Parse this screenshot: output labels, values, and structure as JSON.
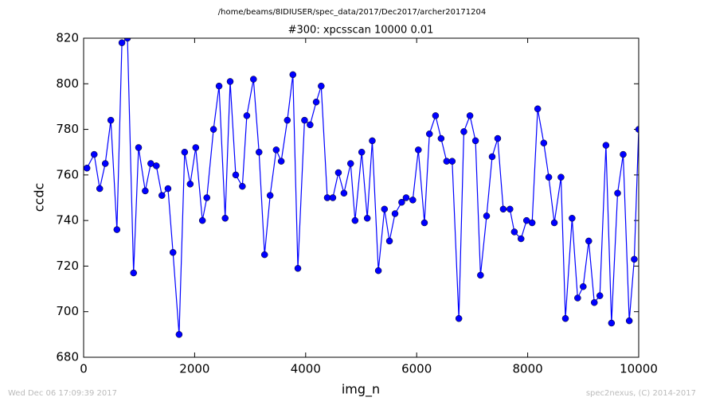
{
  "chart_data": {
    "type": "line",
    "suptitle": "/home/beams/8IDIUSER/spec_data/2017/Dec2017/archer20171204",
    "title": "#300: xpcsscan 10000 0.01",
    "xlabel": "img_n",
    "ylabel": "ccdc",
    "footer_left": "Wed Dec 06 17:09:39 2017",
    "footer_right": "spec2nexus, (C) 2014-2017",
    "xlim": [
      0,
      10000
    ],
    "ylim": [
      680,
      820
    ],
    "xticks": [
      0,
      2000,
      4000,
      6000,
      8000,
      10000
    ],
    "yticks": [
      680,
      700,
      720,
      740,
      760,
      780,
      800,
      820
    ],
    "x": [
      60,
      190,
      290,
      390,
      490,
      600,
      690,
      790,
      900,
      990,
      1110,
      1210,
      1310,
      1410,
      1520,
      1610,
      1720,
      1820,
      1920,
      2020,
      2140,
      2220,
      2340,
      2440,
      2550,
      2640,
      2740,
      2860,
      2940,
      3060,
      3160,
      3260,
      3360,
      3470,
      3560,
      3670,
      3770,
      3860,
      3980,
      4080,
      4190,
      4280,
      4390,
      4490,
      4590,
      4690,
      4810,
      4890,
      5010,
      5110,
      5200,
      5310,
      5420,
      5510,
      5610,
      5730,
      5810,
      5930,
      6030,
      6140,
      6230,
      6340,
      6440,
      6540,
      6640,
      6760,
      6850,
      6960,
      7060,
      7150,
      7260,
      7360,
      7460,
      7560,
      7680,
      7760,
      7880,
      7980,
      8080,
      8180,
      8290,
      8380,
      8480,
      8600,
      8680,
      8800,
      8900,
      9000,
      9100,
      9200,
      9300,
      9410,
      9510,
      9620,
      9720,
      9830,
      9920,
      10000
    ],
    "series": [
      {
        "color": "#0000ff",
        "values": [
          763,
          769,
          754,
          765,
          784,
          736,
          818,
          820,
          717,
          772,
          753,
          765,
          764,
          751,
          754,
          726,
          690,
          770,
          756,
          772,
          740,
          750,
          780,
          799,
          741,
          801,
          760,
          755,
          786,
          802,
          770,
          725,
          751,
          771,
          766,
          784,
          804,
          719,
          784,
          782,
          792,
          799,
          750,
          750,
          761,
          752,
          765,
          740,
          770,
          741,
          775,
          718,
          745,
          731,
          743,
          748,
          750,
          749,
          771,
          739,
          778,
          786,
          776,
          766,
          766,
          697,
          779,
          786,
          775,
          716,
          742,
          768,
          776,
          745,
          745,
          735,
          732,
          740,
          739,
          789,
          774,
          759,
          739,
          759,
          697,
          741,
          706,
          711,
          731,
          704,
          707,
          773,
          695,
          752,
          769,
          696,
          723,
          780
        ]
      }
    ]
  }
}
